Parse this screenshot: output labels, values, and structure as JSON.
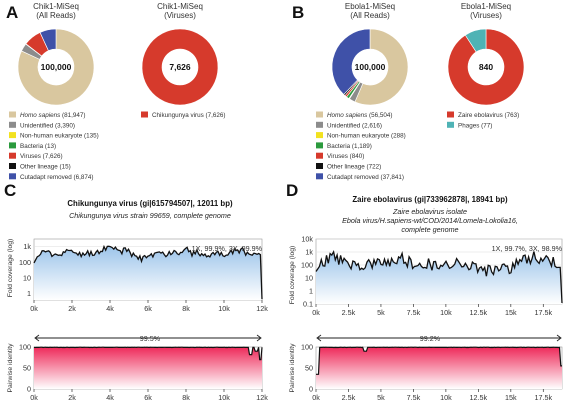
{
  "panels": {
    "A": {
      "label": "A",
      "donut_left": {
        "title": "Chik1-MiSeq",
        "subtitle": "(All Reads)",
        "total": "100,000"
      },
      "donut_right": {
        "title": "Chik1-MiSeq",
        "subtitle": "(Viruses)",
        "total": "7,626"
      },
      "legend": [
        {
          "label": "Homo sapiens",
          "count": "(81,947)",
          "italic": true,
          "color": "#d9c79f"
        },
        {
          "label": "Unidentified",
          "count": "(3,390)",
          "italic": false,
          "color": "#8c8c8c"
        },
        {
          "label": "Non-human eukaryote",
          "count": "(135)",
          "italic": false,
          "color": "#f2e21f"
        },
        {
          "label": "Bacteria",
          "count": "(13)",
          "italic": false,
          "color": "#2b9a3d"
        },
        {
          "label": "Viruses",
          "count": "(7,626)",
          "italic": false,
          "color": "#d63a2c"
        },
        {
          "label": "Other lineage",
          "count": "(15)",
          "italic": false,
          "color": "#111111"
        },
        {
          "label": "Cutadapt removed",
          "count": "(6,874)",
          "italic": false,
          "color": "#3f51a8"
        }
      ],
      "legend_right": [
        {
          "label": "Chikungunya virus",
          "count": "(7,626)",
          "italic": false,
          "color": "#d63a2c"
        }
      ]
    },
    "B": {
      "label": "B",
      "donut_left": {
        "title": "Ebola1-MiSeq",
        "subtitle": "(All Reads)",
        "total": "100,000"
      },
      "donut_right": {
        "title": "Ebola1-MiSeq",
        "subtitle": "(Viruses)",
        "total": "840"
      },
      "legend": [
        {
          "label": "Homo sapiens",
          "count": "(56,504)",
          "italic": true,
          "color": "#d9c79f"
        },
        {
          "label": "Unidentified",
          "count": "(2,616)",
          "italic": false,
          "color": "#8c8c8c"
        },
        {
          "label": "Non-human eukaryote",
          "count": "(288)",
          "italic": false,
          "color": "#f2e21f"
        },
        {
          "label": "Bacteria",
          "count": "(1,189)",
          "italic": false,
          "color": "#2b9a3d"
        },
        {
          "label": "Viruses",
          "count": "(840)",
          "italic": false,
          "color": "#d63a2c"
        },
        {
          "label": "Other lineage",
          "count": "(722)",
          "italic": false,
          "color": "#111111"
        },
        {
          "label": "Cutadapt removed",
          "count": "(37,841)",
          "italic": false,
          "color": "#3f51a8"
        }
      ],
      "legend_right": [
        {
          "label": "Zaire ebolavirus",
          "count": "(763)",
          "italic": false,
          "color": "#d63a2c"
        },
        {
          "label": "Phages",
          "count": "(77)",
          "italic": false,
          "color": "#4fb3b5"
        }
      ]
    },
    "C": {
      "label": "C",
      "title": "Chikungunya virus (gi|615794507|, 12011 bp)",
      "subtitle_lines": [
        "Chikungunya virus strain 99659, complete genome"
      ],
      "coverage_annotation": "1X, 99.9%, 3X, 99.9%",
      "identity_annotation": "99.5%",
      "coverage_ylabel": "Fold coverage (log)",
      "identity_ylabel": "Pairwise identity",
      "coverage_yticks": [
        "1k",
        "100",
        "10",
        "1"
      ],
      "identity_yticks": [
        "100",
        "50",
        "0"
      ],
      "xticks": [
        "0k",
        "2k",
        "4k",
        "6k",
        "8k",
        "10k",
        "12k"
      ]
    },
    "D": {
      "label": "D",
      "title": "Zaire ebolavirus (gi|733962878|, 18941 bp)",
      "subtitle_lines": [
        "Zaire ebolavirus isolate",
        "Ebola virus/H.sapiens-wt/COD/2014/Lomela-Lokolia16,",
        "complete genome"
      ],
      "coverage_annotation": "1X, 99.7%, 3X, 98.9%",
      "identity_annotation": "99.2%",
      "coverage_ylabel": "Fold coverage (log)",
      "identity_ylabel": "Pairwise identity",
      "coverage_yticks": [
        "10k",
        "1k",
        "100",
        "10",
        "1",
        "0.1"
      ],
      "identity_yticks": [
        "100",
        "50",
        "0"
      ],
      "xticks": [
        "0k",
        "2.5k",
        "5k",
        "7.5k",
        "10k",
        "12.5k",
        "15k",
        "17.5k"
      ]
    }
  }
}
